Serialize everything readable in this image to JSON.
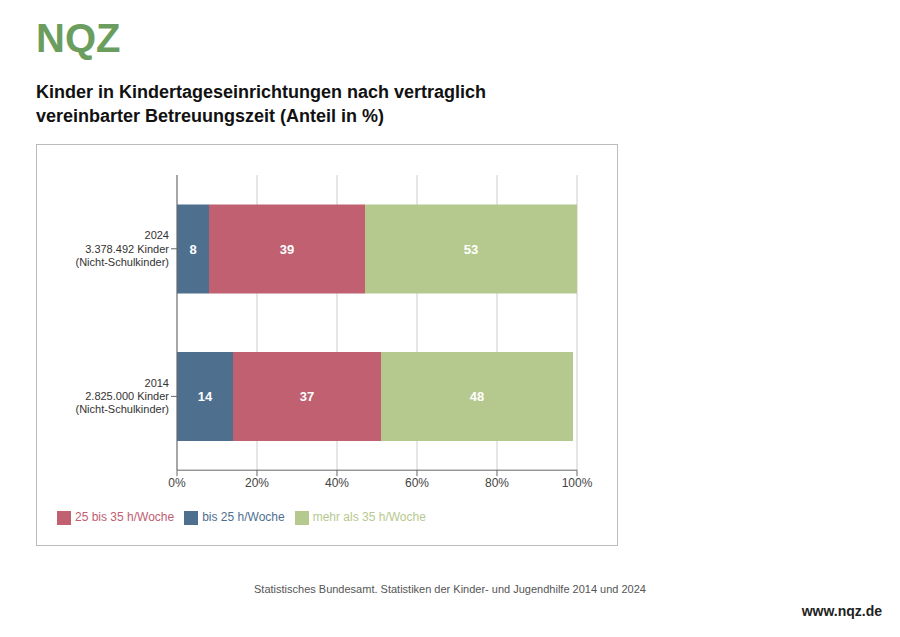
{
  "chart_data": {
    "type": "bar",
    "orientation": "horizontal",
    "stacked": true,
    "title": "Kinder in Kindertageseinrichtungen nach vertraglich\nvereinbarter Betreuungszeit (Anteil in %)",
    "categories": [
      "2024\n3.378.492 Kinder\n(Nicht-Schulkinder)",
      "2014\n2.825.000 Kinder\n(Nicht-Schulkinder)"
    ],
    "series": [
      {
        "name": "bis 25 h/Woche",
        "color": "#4f6f8f",
        "values": [
          8,
          14
        ]
      },
      {
        "name": "25 bis 35 h/Woche",
        "color": "#c06070",
        "values": [
          39,
          37
        ]
      },
      {
        "name": "mehr als 35 h/Woche",
        "color": "#b5c98e",
        "values": [
          53,
          48
        ]
      }
    ],
    "xlim": [
      0,
      100
    ],
    "xticks": [
      {
        "value": 0,
        "label": "0%"
      },
      {
        "value": 20,
        "label": "20%"
      },
      {
        "value": 40,
        "label": "40%"
      },
      {
        "value": 60,
        "label": "60%"
      },
      {
        "value": 80,
        "label": "80%"
      },
      {
        "value": 100,
        "label": "100%"
      }
    ],
    "grid": true,
    "data_labels": true,
    "legend": "lower left",
    "annotations": [
      {
        "text": "NQZ",
        "color": "#6b9e5e"
      },
      {
        "text": "Statistisches Bundesamt. Statistiken der Kinder- und Jugendhilfe 2014 und 2024"
      },
      {
        "text": "www.nqz.de"
      }
    ]
  }
}
